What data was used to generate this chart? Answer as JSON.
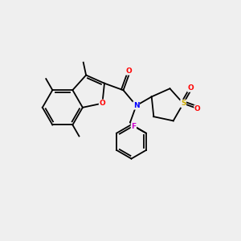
{
  "background_color": "#efefef",
  "bond_color": "#000000",
  "atom_colors": {
    "O": "#ff0000",
    "N": "#0000ff",
    "S": "#ccaa00",
    "F": "#cc00cc",
    "C": "#000000"
  },
  "figsize": [
    3.0,
    3.0
  ],
  "dpi": 100
}
